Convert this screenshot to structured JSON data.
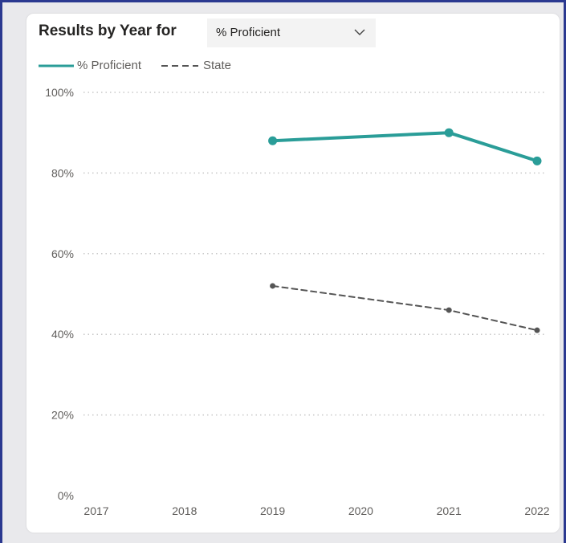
{
  "header": {
    "title": "Results by Year for",
    "dropdown_value": "% Proficient",
    "dropdown_icon": "chevron-down-icon"
  },
  "colors": {
    "primary": "#2a9d98",
    "state": "#555555",
    "grid": "#c8c8c8",
    "axis_text": "#605e5c",
    "frame": "#2b3990"
  },
  "chart_data": {
    "type": "line",
    "x": [
      "2017",
      "2018",
      "2019",
      "2020",
      "2021",
      "2022"
    ],
    "ylim": [
      0,
      100
    ],
    "yticks": [
      "0%",
      "20%",
      "40%",
      "60%",
      "80%",
      "100%"
    ],
    "grid": true,
    "legend_position": "top-left",
    "series": [
      {
        "name": "% Proficient",
        "style": "solid",
        "values": [
          null,
          null,
          88,
          null,
          90,
          83
        ]
      },
      {
        "name": "State",
        "style": "dashed",
        "values": [
          null,
          null,
          52,
          null,
          46,
          41
        ]
      }
    ]
  }
}
